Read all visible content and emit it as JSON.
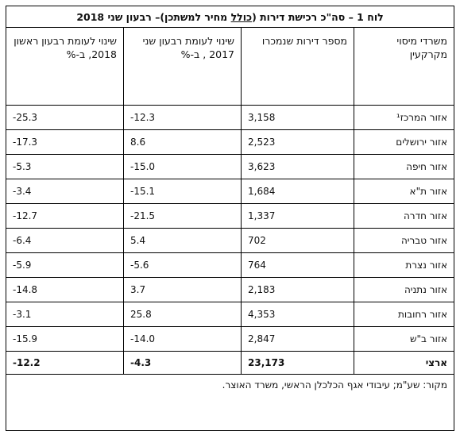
{
  "table": {
    "title_prefix": "לוח 1 – סה\"כ רכישת דירות (",
    "title_underlined": "כולל",
    "title_suffix": " מחיר למשתכן)– רבעון שני 2018",
    "headers": [
      "משרדי מיסוי מקרקעין",
      "מספר דירות שנמכרו",
      "שינוי לעומת רבעון שני 2017 , ב-%",
      "שינוי לעומת רבעון ראשון 2018, ב-%"
    ],
    "rows": [
      {
        "region": "אזור המרכז¹",
        "apartments": "3,158",
        "vs_q2_2017": "-12.3",
        "vs_q1_2018": "-25.3"
      },
      {
        "region": "אזור ירושלים",
        "apartments": "2,523",
        "vs_q2_2017": "8.6",
        "vs_q1_2018": "-17.3"
      },
      {
        "region": "אזור חיפה",
        "apartments": "3,623",
        "vs_q2_2017": "-15.0",
        "vs_q1_2018": "-5.3"
      },
      {
        "region": "אזור ת\"א",
        "apartments": "1,684",
        "vs_q2_2017": "-15.1",
        "vs_q1_2018": "-3.4"
      },
      {
        "region": "אזור חדרה",
        "apartments": "1,337",
        "vs_q2_2017": "-21.5",
        "vs_q1_2018": "-12.7"
      },
      {
        "region": "אזור טבריה",
        "apartments": "702",
        "vs_q2_2017": "5.4",
        "vs_q1_2018": "-6.4"
      },
      {
        "region": "אזור נצרת",
        "apartments": "764",
        "vs_q2_2017": "-5.6",
        "vs_q1_2018": "-5.9"
      },
      {
        "region": "אזור נתניה",
        "apartments": "2,183",
        "vs_q2_2017": "3.7",
        "vs_q1_2018": "-14.8"
      },
      {
        "region": "אזור רחובות",
        "apartments": "4,353",
        "vs_q2_2017": "25.8",
        "vs_q1_2018": "-3.1"
      },
      {
        "region": "אזור ב\"ש",
        "apartments": "2,847",
        "vs_q2_2017": "-14.0",
        "vs_q1_2018": "-15.9"
      }
    ],
    "total": {
      "region": "ארצי",
      "apartments": "23,173",
      "vs_q2_2017": "-4.3",
      "vs_q1_2018": "-12.2"
    },
    "source": "מקור: שע\"מ; עיבודי אגף הכלכלן הראשי, משרד האוצר."
  }
}
